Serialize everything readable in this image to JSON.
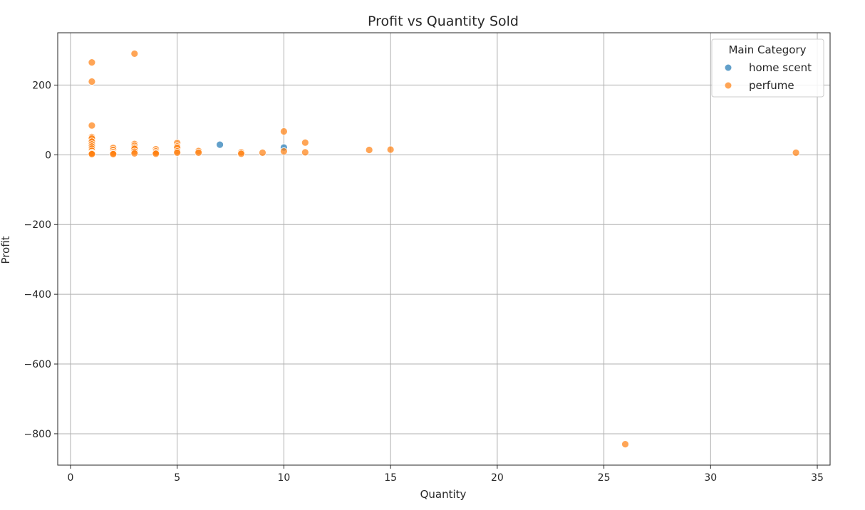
{
  "chart_data": {
    "type": "scatter",
    "title": "Profit vs Quantity Sold",
    "xlabel": "Quantity",
    "ylabel": "Profit",
    "xlim": [
      -0.6,
      35.6
    ],
    "ylim": [
      -890,
      350
    ],
    "xticks": [
      0,
      5,
      10,
      15,
      20,
      25,
      30,
      35
    ],
    "xtick_labels": [
      "0",
      "5",
      "10",
      "15",
      "20",
      "25",
      "30",
      "35"
    ],
    "yticks": [
      -800,
      -600,
      -400,
      -200,
      0,
      200
    ],
    "ytick_labels": [
      "−800",
      "−600",
      "−400",
      "−200",
      "0",
      "200"
    ],
    "grid": true,
    "legend": {
      "title": "Main Category",
      "placement": "top-right"
    },
    "series": [
      {
        "name": "home scent",
        "color": "#1f77b4",
        "points": [
          {
            "x": 7,
            "y": 29
          },
          {
            "x": 10,
            "y": 21
          }
        ]
      },
      {
        "name": "perfume",
        "color": "#ff7f0e",
        "points": [
          {
            "x": 1,
            "y": 265
          },
          {
            "x": 1,
            "y": 210
          },
          {
            "x": 1,
            "y": 84
          },
          {
            "x": 1,
            "y": 51
          },
          {
            "x": 1,
            "y": 47
          },
          {
            "x": 1,
            "y": 38
          },
          {
            "x": 1,
            "y": 30
          },
          {
            "x": 1,
            "y": 24
          },
          {
            "x": 1,
            "y": 18
          },
          {
            "x": 1,
            "y": 12
          },
          {
            "x": 1,
            "y": 6
          },
          {
            "x": 1,
            "y": 4
          },
          {
            "x": 1,
            "y": 2
          },
          {
            "x": 2,
            "y": 20
          },
          {
            "x": 2,
            "y": 14
          },
          {
            "x": 2,
            "y": 8
          },
          {
            "x": 2,
            "y": 4
          },
          {
            "x": 2,
            "y": 2
          },
          {
            "x": 3,
            "y": 290
          },
          {
            "x": 3,
            "y": 31
          },
          {
            "x": 3,
            "y": 26
          },
          {
            "x": 3,
            "y": 21
          },
          {
            "x": 3,
            "y": 17
          },
          {
            "x": 3,
            "y": 9
          },
          {
            "x": 3,
            "y": 4
          },
          {
            "x": 4,
            "y": 16
          },
          {
            "x": 4,
            "y": 10
          },
          {
            "x": 4,
            "y": 6
          },
          {
            "x": 4,
            "y": 3
          },
          {
            "x": 5,
            "y": 34
          },
          {
            "x": 5,
            "y": 24
          },
          {
            "x": 5,
            "y": 20
          },
          {
            "x": 5,
            "y": 10
          },
          {
            "x": 5,
            "y": 6
          },
          {
            "x": 6,
            "y": 11
          },
          {
            "x": 6,
            "y": 6
          },
          {
            "x": 8,
            "y": 7
          },
          {
            "x": 8,
            "y": 3
          },
          {
            "x": 9,
            "y": 6
          },
          {
            "x": 10,
            "y": 67
          },
          {
            "x": 10,
            "y": 10
          },
          {
            "x": 11,
            "y": 35
          },
          {
            "x": 11,
            "y": 7
          },
          {
            "x": 14,
            "y": 14
          },
          {
            "x": 15,
            "y": 15
          },
          {
            "x": 26,
            "y": -830
          },
          {
            "x": 34,
            "y": 6
          }
        ]
      }
    ]
  }
}
